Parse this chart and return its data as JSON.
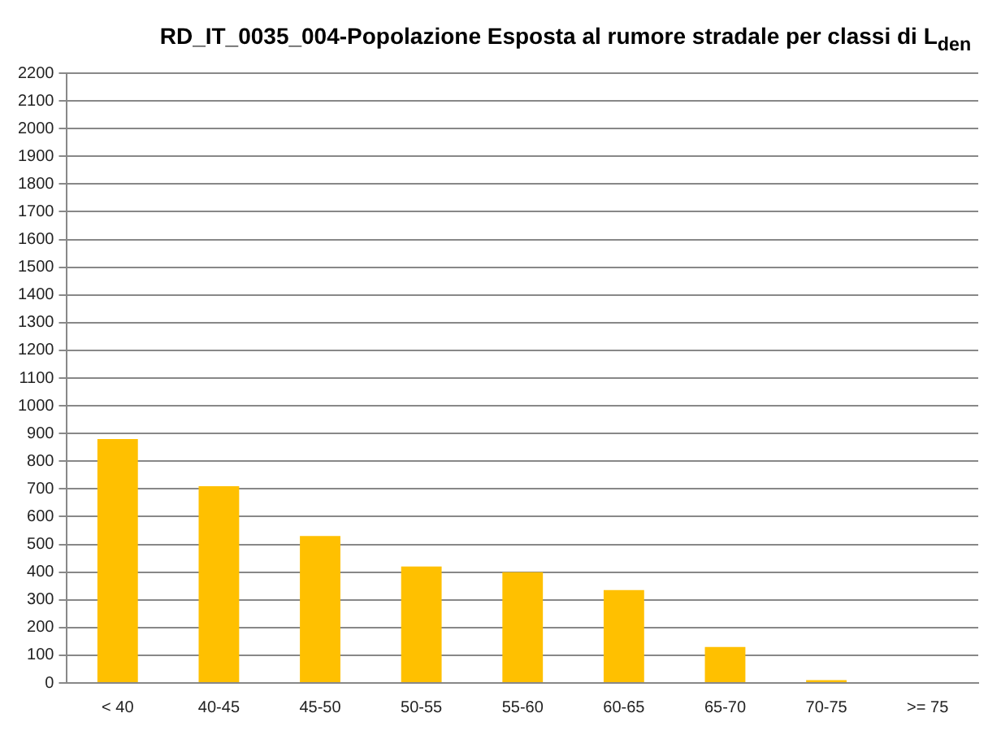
{
  "chart_data": {
    "type": "bar",
    "title": "RD_IT_0035_004-Popolazione Esposta al rumore stradale per classi di L$_{den}$",
    "categories": [
      "< 40",
      "40-45",
      "45-50",
      "50-55",
      "55-60",
      "60-65",
      "65-70",
      "70-75",
      ">= 75"
    ],
    "values": [
      880,
      710,
      530,
      420,
      400,
      335,
      130,
      10,
      0
    ],
    "color": "#ffc000",
    "ylim": [
      0,
      2200
    ],
    "yticks": [
      0,
      100,
      200,
      300,
      400,
      500,
      600,
      700,
      800,
      900,
      1000,
      1100,
      1200,
      1300,
      1400,
      1500,
      1600,
      1700,
      1800,
      1900,
      2000,
      2100,
      2200
    ],
    "grid": "y",
    "legend": false
  }
}
